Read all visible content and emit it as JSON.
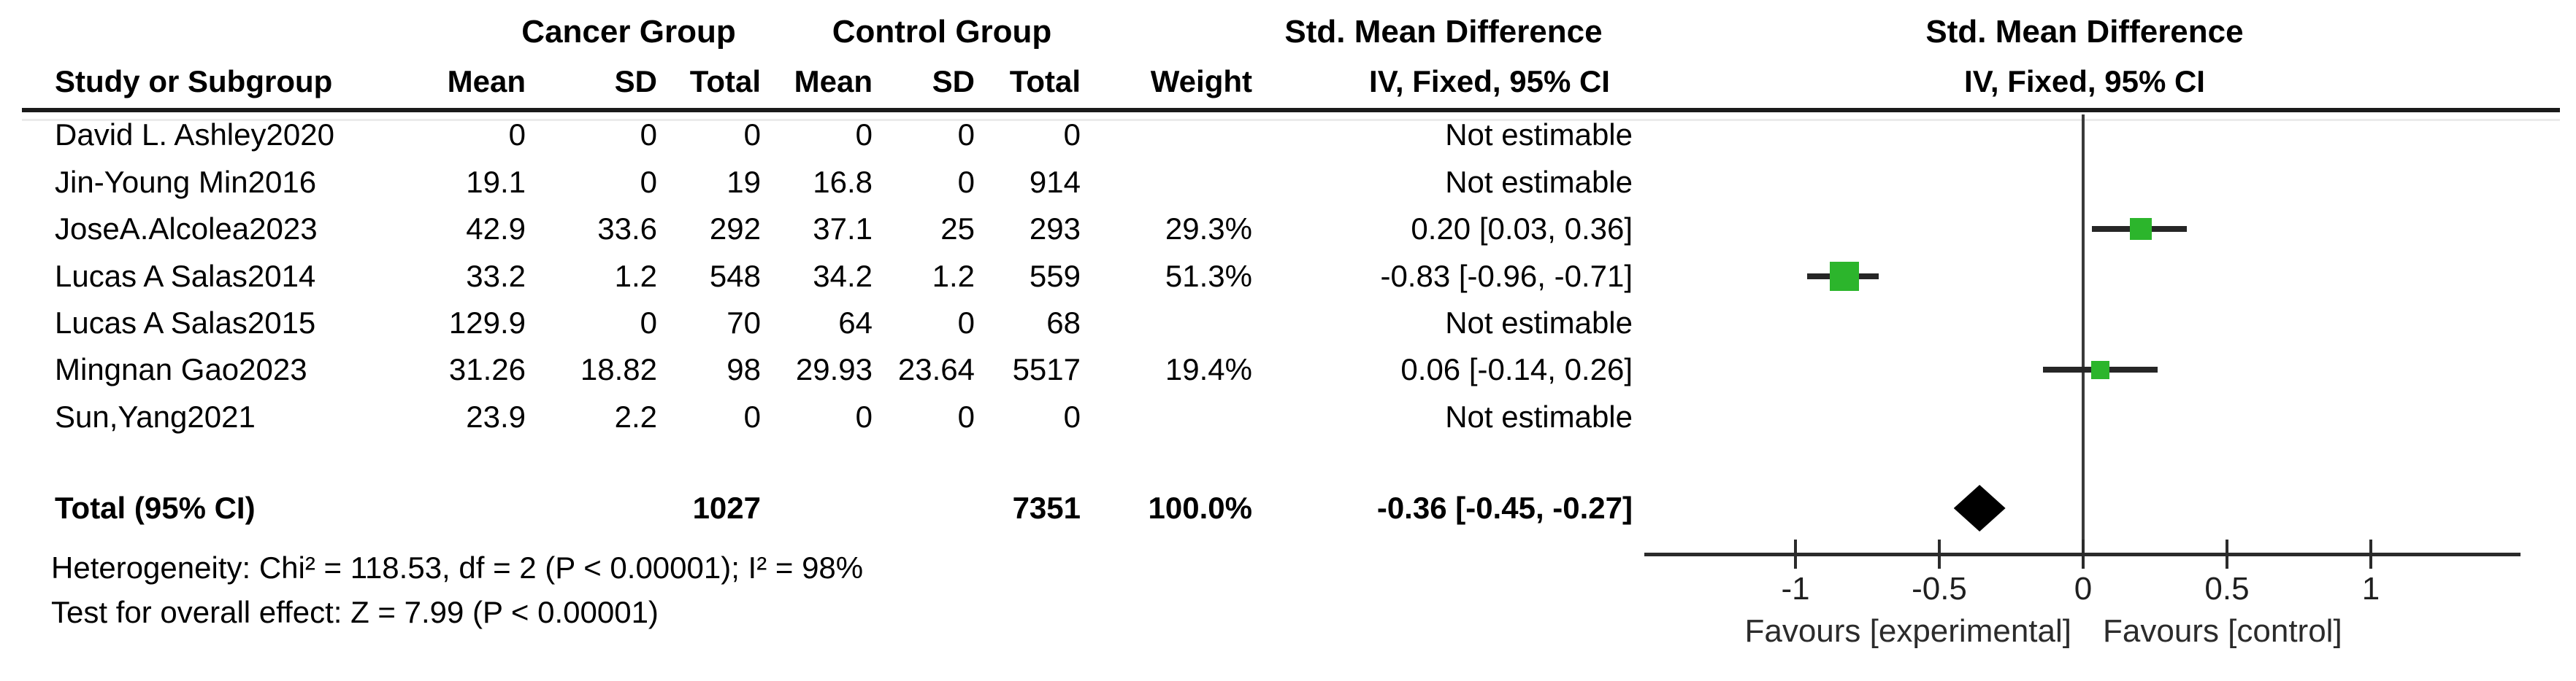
{
  "table": {
    "group_headers": {
      "cancer": "Cancer Group",
      "control": "Control Group",
      "smd_table": "Std. Mean Difference",
      "smd_plot": "Std. Mean Difference"
    },
    "col_headers": {
      "study": "Study or Subgroup",
      "mean": "Mean",
      "sd": "SD",
      "total": "Total",
      "weight": "Weight",
      "ci": "IV, Fixed, 95% CI",
      "ci_plot": "IV, Fixed, 95% CI"
    },
    "rows": [
      {
        "study": "David L. Ashley2020",
        "mean1": "0",
        "sd1": "0",
        "total1": "0",
        "mean2": "0",
        "sd2": "0",
        "total2": "0",
        "weight": "",
        "ci": "Not estimable"
      },
      {
        "study": "Jin-Young Min2016",
        "mean1": "19.1",
        "sd1": "0",
        "total1": "19",
        "mean2": "16.8",
        "sd2": "0",
        "total2": "914",
        "weight": "",
        "ci": "Not estimable"
      },
      {
        "study": "JoseA.Alcolea2023",
        "mean1": "42.9",
        "sd1": "33.6",
        "total1": "292",
        "mean2": "37.1",
        "sd2": "25",
        "total2": "293",
        "weight": "29.3%",
        "ci": "0.20 [0.03, 0.36]"
      },
      {
        "study": "Lucas A Salas2014",
        "mean1": "33.2",
        "sd1": "1.2",
        "total1": "548",
        "mean2": "34.2",
        "sd2": "1.2",
        "total2": "559",
        "weight": "51.3%",
        "ci": "-0.83 [-0.96, -0.71]"
      },
      {
        "study": "Lucas A Salas2015",
        "mean1": "129.9",
        "sd1": "0",
        "total1": "70",
        "mean2": "64",
        "sd2": "0",
        "total2": "68",
        "weight": "",
        "ci": "Not estimable"
      },
      {
        "study": "Mingnan Gao2023",
        "mean1": "31.26",
        "sd1": "18.82",
        "total1": "98",
        "mean2": "29.93",
        "sd2": "23.64",
        "total2": "5517",
        "weight": "19.4%",
        "ci": "0.06 [-0.14, 0.26]"
      },
      {
        "study": "Sun,Yang2021",
        "mean1": "23.9",
        "sd1": "2.2",
        "total1": "0",
        "mean2": "0",
        "sd2": "0",
        "total2": "0",
        "weight": "",
        "ci": "Not estimable"
      }
    ],
    "total": {
      "label": "Total (95% CI)",
      "total1": "1027",
      "total2": "7351",
      "weight": "100.0%",
      "ci": "-0.36 [-0.45, -0.27]"
    },
    "heterogeneity": "Heterogeneity: Chi² = 118.53, df = 2 (P < 0.00001); I² = 98%",
    "overall_effect": "Test for overall effect: Z = 7.99 (P < 0.00001)"
  },
  "plot": {
    "tick_labels": [
      "-1",
      "-0.5",
      "0",
      "0.5",
      "1"
    ],
    "favours_left": "Favours [experimental]",
    "favours_right": "Favours [control]",
    "marker_color": "#2CB52C",
    "diamond_color": "#000000"
  },
  "chart_data": {
    "type": "scatter",
    "subtype": "forest_plot",
    "title": "Std. Mean Difference",
    "effect_measure": "IV, Fixed, 95% CI",
    "x_axis": {
      "range": [
        -1.53,
        1.52
      ],
      "ticks": [
        -1,
        -0.5,
        0,
        0.5,
        1
      ],
      "left_label": "Favours [experimental]",
      "right_label": "Favours [control]"
    },
    "studies": [
      {
        "name": "David L. Ashley2020",
        "smd": null,
        "ci": null,
        "weight": null
      },
      {
        "name": "Jin-Young Min2016",
        "smd": null,
        "ci": null,
        "weight": null
      },
      {
        "name": "JoseA.Alcolea2023",
        "smd": 0.2,
        "ci": [
          0.03,
          0.36
        ],
        "weight": 29.3
      },
      {
        "name": "Lucas A Salas2014",
        "smd": -0.83,
        "ci": [
          -0.96,
          -0.71
        ],
        "weight": 51.3
      },
      {
        "name": "Lucas A Salas2015",
        "smd": null,
        "ci": null,
        "weight": null
      },
      {
        "name": "Mingnan Gao2023",
        "smd": 0.06,
        "ci": [
          -0.14,
          0.26
        ],
        "weight": 19.4
      },
      {
        "name": "Sun,Yang2021",
        "smd": null,
        "ci": null,
        "weight": null
      }
    ],
    "total": {
      "name": "Total (95% CI)",
      "smd": -0.36,
      "ci": [
        -0.45,
        -0.27
      ],
      "weight": 100.0
    },
    "heterogeneity": {
      "chi2": 118.53,
      "df": 2,
      "p": "< 0.00001",
      "i2_pct": 98
    },
    "overall_effect": {
      "z": 7.99,
      "p": "< 0.00001"
    }
  }
}
